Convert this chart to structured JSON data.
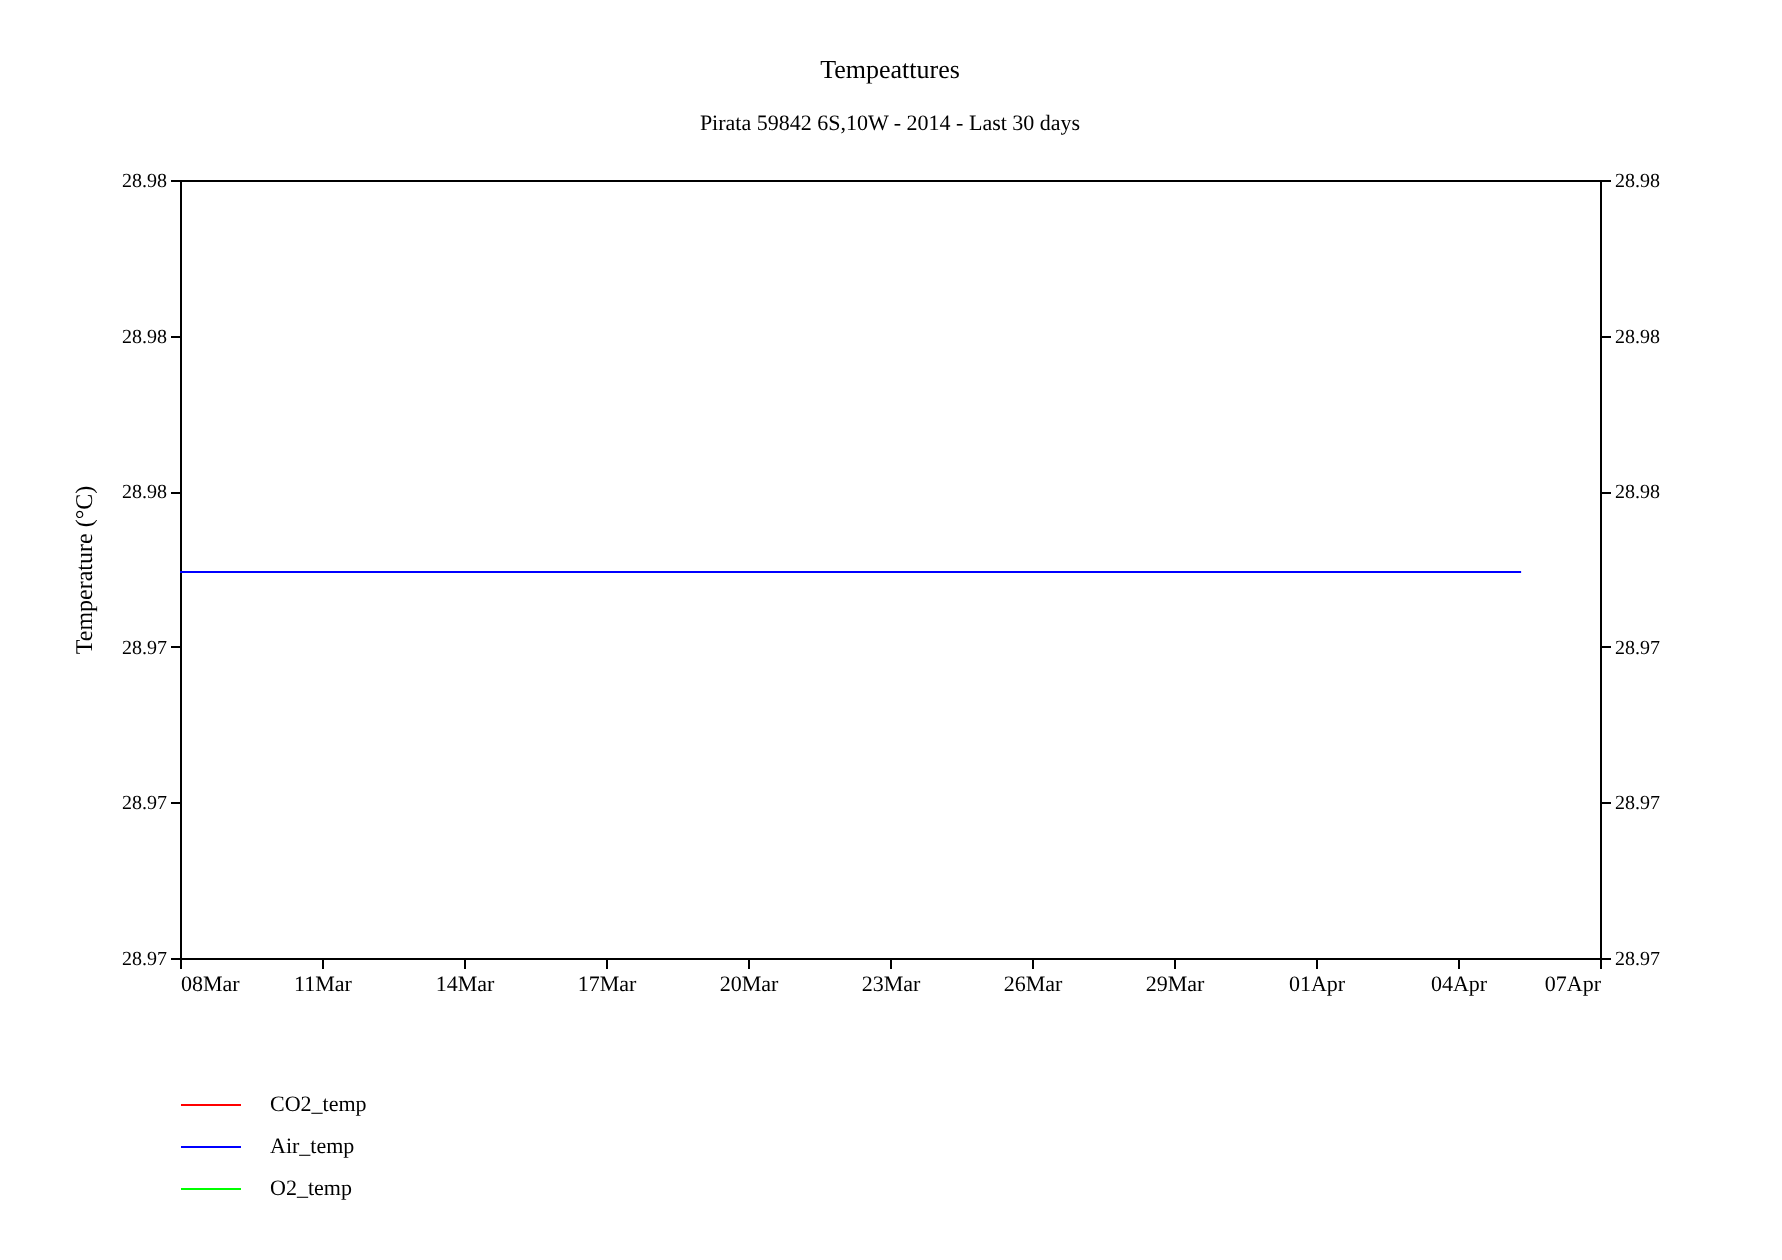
{
  "chart_data": {
    "type": "line",
    "title": "Tempeattures",
    "subtitle": "Pirata 59842 6S,10W - 2014 - Last 30 days",
    "ylabel": "Temperature (°C)",
    "x": [
      "2014-03-08",
      "2014-04-05T08:00"
    ],
    "series": [
      {
        "name": "CO2_temp",
        "color": "#ff0000",
        "values": [
          null,
          null
        ]
      },
      {
        "name": "Air_temp",
        "color": "#0000ff",
        "values": [
          28.9737,
          28.9737
        ]
      },
      {
        "name": "O2_temp",
        "color": "#00ff00",
        "values": [
          null,
          null
        ]
      }
    ],
    "xlim": [
      "2014-03-08",
      "2014-04-07"
    ],
    "xticks": [
      {
        "value": "2014-03-08",
        "label": "08Mar"
      },
      {
        "value": "2014-03-11",
        "label": "11Mar"
      },
      {
        "value": "2014-03-14",
        "label": "14Mar"
      },
      {
        "value": "2014-03-17",
        "label": "17Mar"
      },
      {
        "value": "2014-03-20",
        "label": "20Mar"
      },
      {
        "value": "2014-03-23",
        "label": "23Mar"
      },
      {
        "value": "2014-03-26",
        "label": "26Mar"
      },
      {
        "value": "2014-03-29",
        "label": "29Mar"
      },
      {
        "value": "2014-04-01",
        "label": "01Apr"
      },
      {
        "value": "2014-04-04",
        "label": "04Apr"
      },
      {
        "value": "2014-04-07",
        "label": "07Apr"
      }
    ],
    "ylim": [
      28.9675,
      28.98
    ],
    "yticks": [
      {
        "value": 28.9675,
        "label": "28.97"
      },
      {
        "value": 28.97,
        "label": "28.97"
      },
      {
        "value": 28.9725,
        "label": "28.97"
      },
      {
        "value": 28.975,
        "label": "28.98"
      },
      {
        "value": 28.9775,
        "label": "28.98"
      },
      {
        "value": 28.98,
        "label": "28.98"
      }
    ],
    "y2lim": [
      28.9675,
      28.98
    ],
    "y2ticks": [
      {
        "value": 28.9675,
        "label": "28.97"
      },
      {
        "value": 28.97,
        "label": "28.97"
      },
      {
        "value": 28.9725,
        "label": "28.97"
      },
      {
        "value": 28.975,
        "label": "28.98"
      },
      {
        "value": 28.9775,
        "label": "28.98"
      },
      {
        "value": 28.98,
        "label": "28.98"
      }
    ],
    "grid": false,
    "legend": "bottom left",
    "line_style": "solid",
    "marker": "none"
  }
}
